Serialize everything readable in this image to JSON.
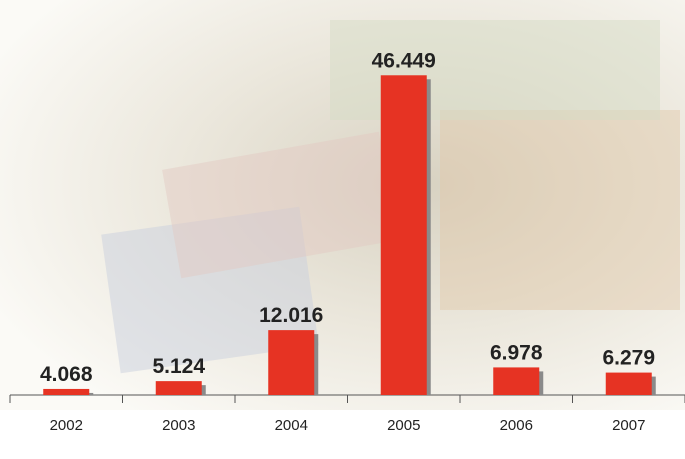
{
  "chart_data": {
    "type": "bar",
    "categories": [
      "2002",
      "2003",
      "2004",
      "2005",
      "2006",
      "2007"
    ],
    "values": [
      4068,
      5124,
      12016,
      46449,
      6978,
      6279
    ],
    "value_labels": [
      "4.068",
      "5.124",
      "12.016",
      "46.449",
      "6.978",
      "6.279"
    ],
    "color": "#e63323",
    "ylim": [
      3250,
      50000
    ]
  }
}
